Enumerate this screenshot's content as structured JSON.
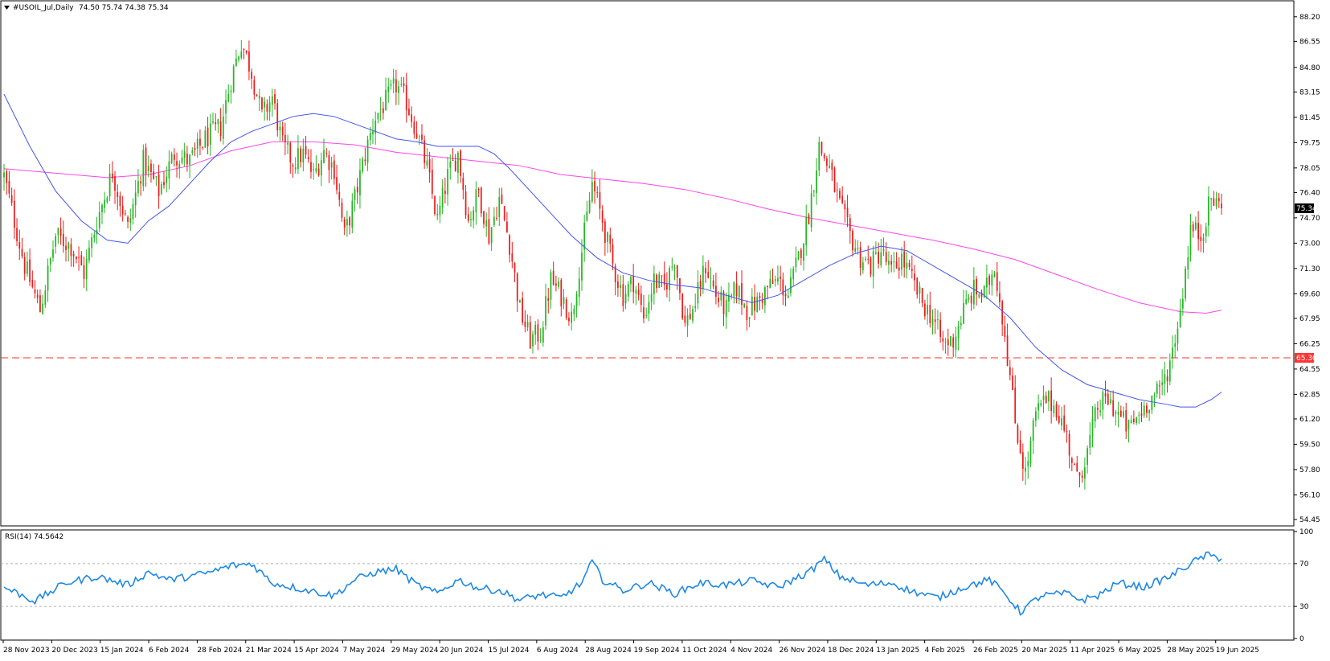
{
  "chart_data": [
    {
      "type": "candlestick",
      "symbol_label": "#USOIL_Jul,Daily",
      "ohlc_label": "74.50 75.74 74.38 75.34",
      "ylim": [
        54.45,
        89.0
      ],
      "y_ticks": [
        "88.20",
        "86.55",
        "84.80",
        "83.15",
        "81.45",
        "79.75",
        "78.05",
        "76.40",
        "74.70",
        "73.00",
        "71.30",
        "69.60",
        "67.95",
        "66.25",
        "64.55",
        "62.85",
        "61.20",
        "59.50",
        "57.80",
        "56.10",
        "54.45"
      ],
      "x_ticks": [
        "28 Nov 2023",
        "20 Dec 2023",
        "15 Jan 2024",
        "6 Feb 2024",
        "28 Feb 2024",
        "21 Mar 2024",
        "15 Apr 2024",
        "7 May 2024",
        "29 May 2024",
        "20 Jun 2024",
        "15 Jul 2024",
        "6 Aug 2024",
        "28 Aug 2024",
        "19 Sep 2024",
        "11 Oct 2024",
        "4 Nov 2024",
        "26 Nov 2024",
        "18 Dec 2024",
        "13 Jan 2025",
        "4 Feb 2025",
        "26 Feb 2025",
        "20 Mar 2025",
        "11 Apr 2025",
        "6 May 2025",
        "28 May 2025",
        "19 Jun 2025"
      ],
      "current_price": 75.34,
      "current_price_label": "75.34",
      "horizontal_line": 65.3,
      "horizontal_line_label": "65.30",
      "colors": {
        "up": "#22b822",
        "down": "#ee1b1b",
        "ma_fast": "#4455ee",
        "ma_slow": "#ff44ee",
        "hline": "#ff3333"
      },
      "close_path": [
        [
          0,
          77.5
        ],
        [
          8,
          71.5
        ],
        [
          14,
          68.5
        ],
        [
          20,
          73.5
        ],
        [
          26,
          72.8
        ],
        [
          31,
          71.0
        ],
        [
          36,
          74.5
        ],
        [
          42,
          77.8
        ],
        [
          48,
          74.0
        ],
        [
          54,
          78.5
        ],
        [
          60,
          76.5
        ],
        [
          66,
          79.0
        ],
        [
          72,
          78.5
        ],
        [
          78,
          80.0
        ],
        [
          84,
          80.8
        ],
        [
          88,
          84.0
        ],
        [
          92,
          86.5
        ],
        [
          96,
          84.5
        ],
        [
          100,
          81.5
        ],
        [
          104,
          82.8
        ],
        [
          108,
          79.5
        ],
        [
          112,
          78.5
        ],
        [
          116,
          79.0
        ],
        [
          120,
          77.5
        ],
        [
          124,
          79.2
        ],
        [
          128,
          78.0
        ],
        [
          132,
          73.5
        ],
        [
          136,
          76.0
        ],
        [
          140,
          79.0
        ],
        [
          144,
          81.5
        ],
        [
          148,
          82.5
        ],
        [
          152,
          83.6
        ],
        [
          156,
          82.5
        ],
        [
          160,
          80.5
        ],
        [
          164,
          78.0
        ],
        [
          168,
          74.5
        ],
        [
          172,
          77.5
        ],
        [
          176,
          79.0
        ],
        [
          180,
          74.5
        ],
        [
          184,
          76.5
        ],
        [
          188,
          73.5
        ],
        [
          192,
          76.0
        ],
        [
          196,
          73.0
        ],
        [
          200,
          68.5
        ],
        [
          204,
          66.5
        ],
        [
          208,
          67.0
        ],
        [
          212,
          70.5
        ],
        [
          216,
          69.5
        ],
        [
          220,
          68.0
        ],
        [
          224,
          72.5
        ],
        [
          228,
          77.0
        ],
        [
          232,
          74.5
        ],
        [
          236,
          71.5
        ],
        [
          240,
          69.5
        ],
        [
          244,
          70.5
        ],
        [
          248,
          68.0
        ],
        [
          252,
          70.5
        ],
        [
          256,
          70.0
        ],
        [
          260,
          72.0
        ],
        [
          264,
          67.5
        ],
        [
          268,
          69.0
        ],
        [
          272,
          71.5
        ],
        [
          276,
          69.5
        ],
        [
          280,
          68.5
        ],
        [
          284,
          70.0
        ],
        [
          288,
          68.5
        ],
        [
          292,
          69.0
        ],
        [
          296,
          70.0
        ],
        [
          300,
          70.5
        ],
        [
          304,
          69.5
        ],
        [
          308,
          72.0
        ],
        [
          312,
          75.0
        ],
        [
          316,
          79.5
        ],
        [
          320,
          78.0
        ],
        [
          324,
          75.5
        ],
        [
          328,
          73.5
        ],
        [
          332,
          72.0
        ],
        [
          336,
          71.5
        ],
        [
          340,
          72.5
        ],
        [
          344,
          71.0
        ],
        [
          348,
          72.0
        ],
        [
          352,
          70.5
        ],
        [
          356,
          69.0
        ],
        [
          360,
          68.0
        ],
        [
          364,
          66.2
        ],
        [
          368,
          66.5
        ],
        [
          372,
          68.5
        ],
        [
          376,
          69.8
        ],
        [
          380,
          69.5
        ],
        [
          384,
          71.5
        ],
        [
          388,
          67.0
        ],
        [
          392,
          61.0
        ],
        [
          396,
          57.5
        ],
        [
          400,
          61.5
        ],
        [
          404,
          62.5
        ],
        [
          408,
          62.0
        ],
        [
          412,
          60.0
        ],
        [
          416,
          57.0
        ],
        [
          420,
          59.0
        ],
        [
          424,
          62.0
        ],
        [
          428,
          62.5
        ],
        [
          432,
          61.5
        ],
        [
          436,
          60.5
        ],
        [
          440,
          61.5
        ],
        [
          444,
          62.5
        ],
        [
          448,
          63.0
        ],
        [
          452,
          65.0
        ],
        [
          456,
          68.5
        ],
        [
          460,
          74.0
        ],
        [
          464,
          73.5
        ],
        [
          468,
          76.0
        ],
        [
          472,
          75.34
        ]
      ],
      "ma_fast": [
        [
          0,
          83.0
        ],
        [
          10,
          79.5
        ],
        [
          20,
          76.5
        ],
        [
          30,
          74.5
        ],
        [
          40,
          73.2
        ],
        [
          48,
          73.0
        ],
        [
          56,
          74.5
        ],
        [
          64,
          75.5
        ],
        [
          72,
          77.0
        ],
        [
          80,
          78.5
        ],
        [
          88,
          79.8
        ],
        [
          96,
          80.5
        ],
        [
          104,
          81.0
        ],
        [
          112,
          81.5
        ],
        [
          120,
          81.7
        ],
        [
          128,
          81.5
        ],
        [
          136,
          81.0
        ],
        [
          144,
          80.5
        ],
        [
          152,
          80.0
        ],
        [
          160,
          79.8
        ],
        [
          168,
          79.5
        ],
        [
          176,
          79.5
        ],
        [
          184,
          79.5
        ],
        [
          190,
          79.0
        ],
        [
          196,
          78.0
        ],
        [
          204,
          76.5
        ],
        [
          212,
          75.0
        ],
        [
          220,
          73.5
        ],
        [
          230,
          72.0
        ],
        [
          240,
          71.0
        ],
        [
          250,
          70.5
        ],
        [
          260,
          70.2
        ],
        [
          270,
          70.0
        ],
        [
          280,
          69.5
        ],
        [
          290,
          69.0
        ],
        [
          300,
          69.5
        ],
        [
          310,
          70.5
        ],
        [
          320,
          71.5
        ],
        [
          330,
          72.3
        ],
        [
          340,
          72.8
        ],
        [
          350,
          72.5
        ],
        [
          360,
          71.5
        ],
        [
          370,
          70.5
        ],
        [
          380,
          69.5
        ],
        [
          390,
          68.0
        ],
        [
          400,
          66.0
        ],
        [
          410,
          64.5
        ],
        [
          420,
          63.5
        ],
        [
          430,
          63.0
        ],
        [
          440,
          62.5
        ],
        [
          450,
          62.2
        ],
        [
          456,
          62.0
        ],
        [
          462,
          62.0
        ],
        [
          468,
          62.5
        ],
        [
          472,
          63.0
        ]
      ],
      "ma_slow": [
        [
          0,
          78.0
        ],
        [
          20,
          77.7
        ],
        [
          40,
          77.4
        ],
        [
          56,
          77.6
        ],
        [
          72,
          78.2
        ],
        [
          88,
          79.2
        ],
        [
          104,
          79.8
        ],
        [
          120,
          79.8
        ],
        [
          136,
          79.6
        ],
        [
          152,
          79.1
        ],
        [
          168,
          78.8
        ],
        [
          184,
          78.5
        ],
        [
          200,
          78.2
        ],
        [
          216,
          77.6
        ],
        [
          232,
          77.3
        ],
        [
          248,
          77.0
        ],
        [
          264,
          76.6
        ],
        [
          280,
          76.0
        ],
        [
          296,
          75.3
        ],
        [
          312,
          74.7
        ],
        [
          328,
          74.2
        ],
        [
          344,
          73.7
        ],
        [
          360,
          73.2
        ],
        [
          376,
          72.6
        ],
        [
          392,
          71.9
        ],
        [
          408,
          70.9
        ],
        [
          424,
          69.9
        ],
        [
          440,
          69.0
        ],
        [
          456,
          68.4
        ],
        [
          466,
          68.3
        ],
        [
          472,
          68.5
        ]
      ],
      "n_bars": 473,
      "rsi": {
        "label": "RSI(14) 74.5642",
        "period": 14,
        "value": 74.5642,
        "ylim": [
          0,
          100
        ],
        "y_ticks": [
          "100",
          "70",
          "30",
          "0"
        ],
        "levels": [
          70,
          30
        ],
        "color": "#1e88e5",
        "path": [
          [
            0,
            48
          ],
          [
            12,
            35
          ],
          [
            24,
            52
          ],
          [
            36,
            58
          ],
          [
            48,
            50
          ],
          [
            56,
            62
          ],
          [
            64,
            55
          ],
          [
            72,
            58
          ],
          [
            80,
            62
          ],
          [
            88,
            68
          ],
          [
            96,
            70
          ],
          [
            104,
            52
          ],
          [
            112,
            48
          ],
          [
            120,
            44
          ],
          [
            128,
            40
          ],
          [
            136,
            55
          ],
          [
            144,
            62
          ],
          [
            152,
            65
          ],
          [
            160,
            50
          ],
          [
            168,
            42
          ],
          [
            176,
            55
          ],
          [
            184,
            47
          ],
          [
            192,
            45
          ],
          [
            200,
            36
          ],
          [
            208,
            41
          ],
          [
            216,
            38
          ],
          [
            224,
            52
          ],
          [
            228,
            72
          ],
          [
            232,
            55
          ],
          [
            240,
            45
          ],
          [
            250,
            52
          ],
          [
            260,
            42
          ],
          [
            270,
            52
          ],
          [
            280,
            50
          ],
          [
            290,
            54
          ],
          [
            300,
            48
          ],
          [
            312,
            62
          ],
          [
            318,
            74
          ],
          [
            324,
            58
          ],
          [
            334,
            50
          ],
          [
            344,
            52
          ],
          [
            352,
            44
          ],
          [
            362,
            38
          ],
          [
            372,
            48
          ],
          [
            382,
            55
          ],
          [
            388,
            42
          ],
          [
            394,
            25
          ],
          [
            402,
            40
          ],
          [
            412,
            42
          ],
          [
            418,
            36
          ],
          [
            424,
            40
          ],
          [
            432,
            52
          ],
          [
            442,
            48
          ],
          [
            452,
            58
          ],
          [
            460,
            70
          ],
          [
            466,
            78
          ],
          [
            472,
            74.6
          ]
        ]
      }
    }
  ]
}
